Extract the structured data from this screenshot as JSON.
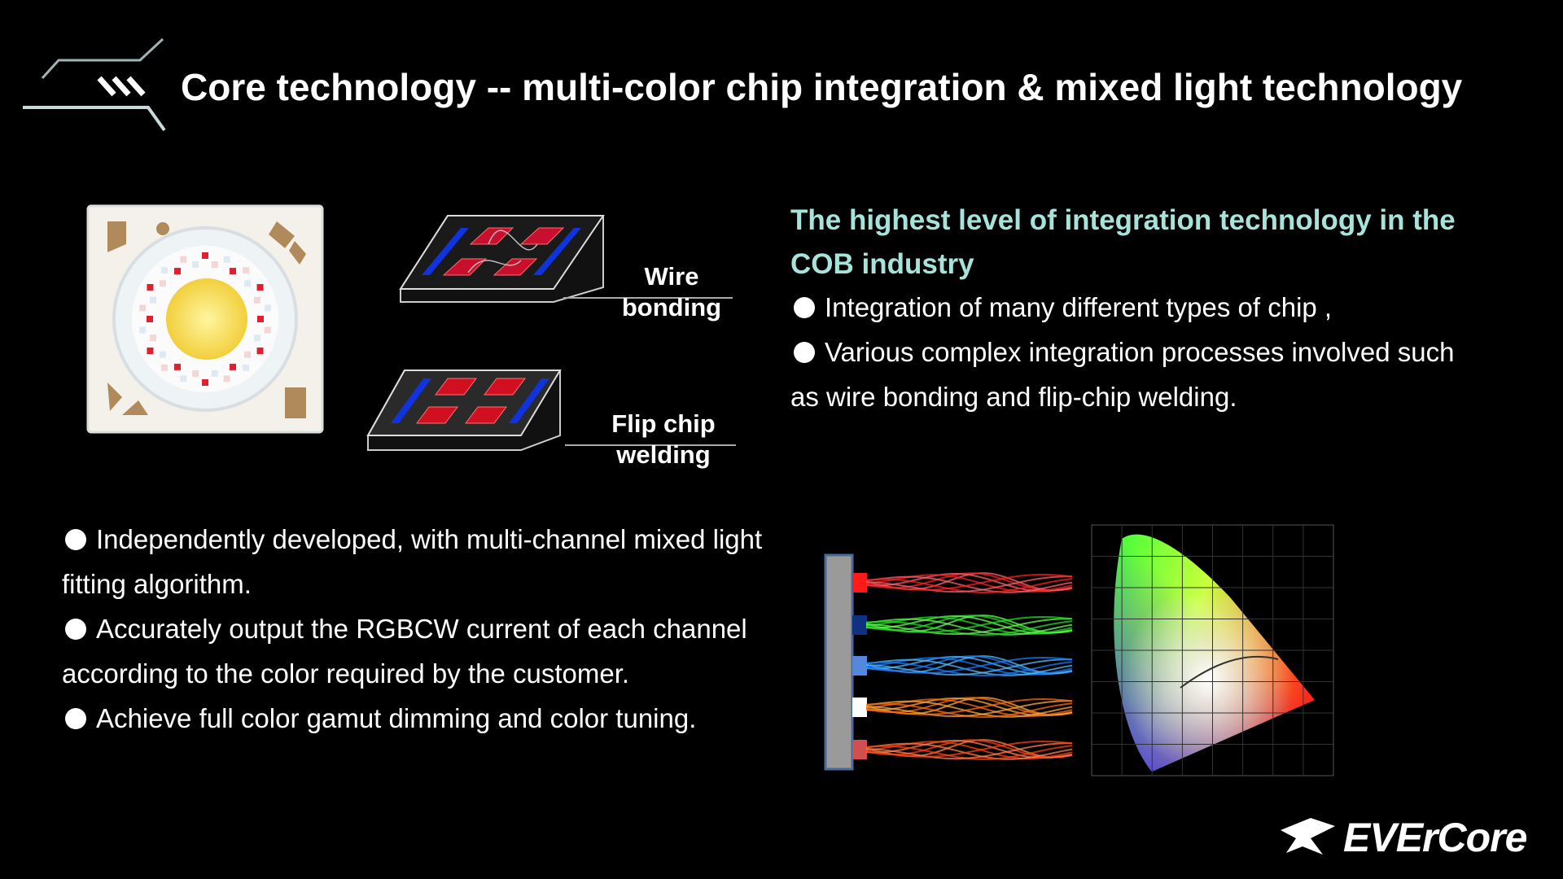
{
  "header": {
    "title": "Core technology -- multi-color chip integration & mixed light technology"
  },
  "diagram": {
    "labels": [
      "Wire bonding",
      "Flip chip welding"
    ]
  },
  "right": {
    "heading": "The highest level of integration technology in the COB industry",
    "bullets": [
      "Integration of many different types of chip ,",
      "Various complex integration processes involved such as wire bonding and flip-chip welding."
    ]
  },
  "left": {
    "bullets": [
      "Independently developed, with multi-channel mixed light fitting algorithm.",
      "Accurately output the RGBCW current of each channel according to the color required by the customer.",
      "Achieve full color gamut dimming and color tuning."
    ]
  },
  "logo": {
    "text": "EVErCore"
  }
}
